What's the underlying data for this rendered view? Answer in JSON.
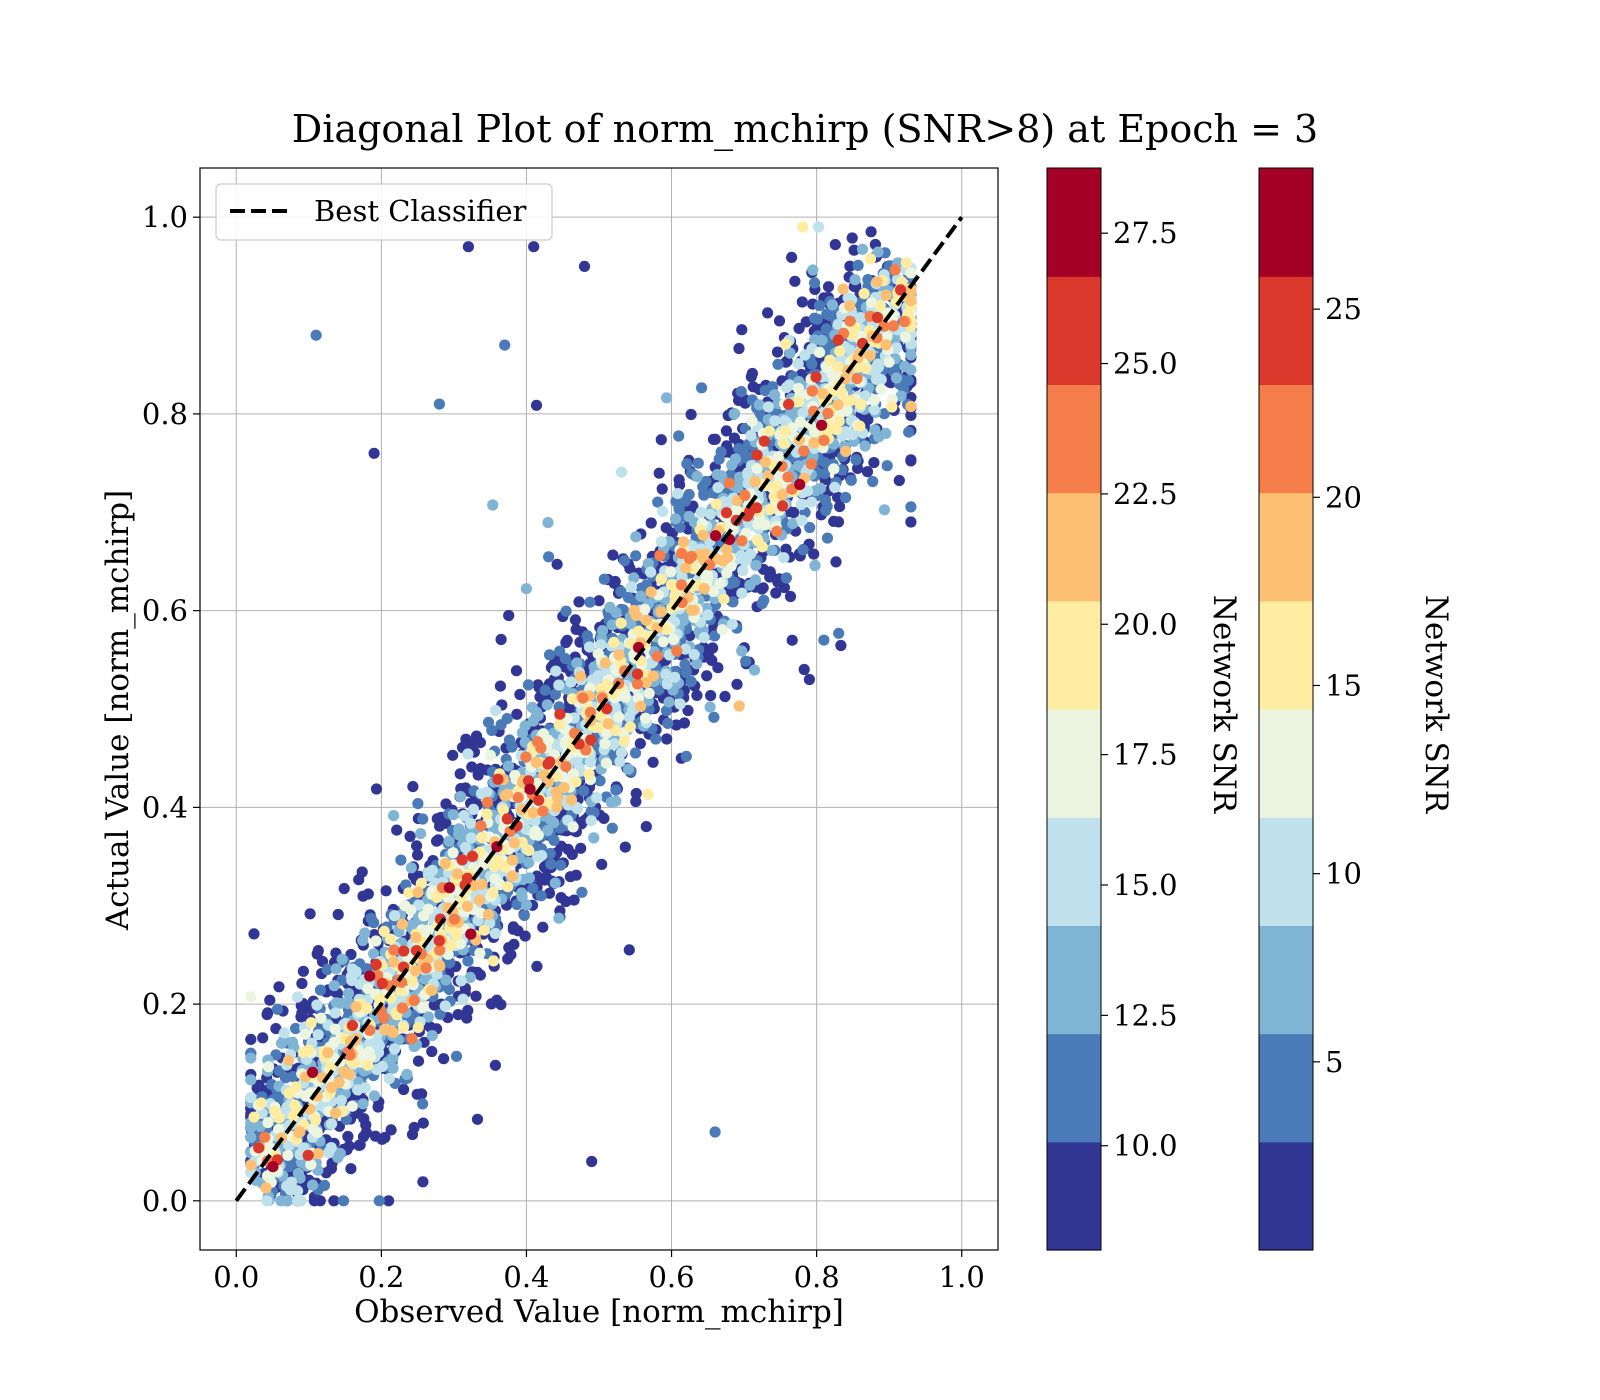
{
  "chart_data": {
    "type": "scatter",
    "title": "Diagonal Plot of norm_mchirp (SNR>8) at Epoch = 3",
    "xlabel": "Observed Value [norm_mchirp]",
    "ylabel": "Actual Value [norm_mchirp]",
    "xlim": [
      -0.05,
      1.05
    ],
    "ylim": [
      -0.05,
      1.05
    ],
    "xticks": [
      "0.0",
      "0.2",
      "0.4",
      "0.6",
      "0.8",
      "1.0"
    ],
    "yticks": [
      "0.0",
      "0.2",
      "0.4",
      "0.6",
      "0.8",
      "1.0"
    ],
    "grid": true,
    "legend": {
      "placement": "upper-left",
      "entries": [
        "Best Classifier"
      ]
    },
    "reference_line": {
      "name": "Best Classifier",
      "x": [
        0.0,
        1.0
      ],
      "y": [
        0.0,
        1.0
      ],
      "style": "dashed",
      "color": "#000000"
    },
    "scatter": {
      "color_by": "Network SNR",
      "approx_point_count": 5000,
      "visible_outliers": [
        {
          "x": 0.11,
          "y": 0.88,
          "snr": 12
        },
        {
          "x": 0.32,
          "y": 0.97,
          "snr": 9
        },
        {
          "x": 0.41,
          "y": 0.97,
          "snr": 9
        },
        {
          "x": 0.48,
          "y": 0.95,
          "snr": 9
        },
        {
          "x": 0.19,
          "y": 0.76,
          "snr": 9
        },
        {
          "x": 0.28,
          "y": 0.81,
          "snr": 11
        },
        {
          "x": 0.37,
          "y": 0.87,
          "snr": 12
        },
        {
          "x": 0.66,
          "y": 0.07,
          "snr": 12
        },
        {
          "x": 0.49,
          "y": 0.04,
          "snr": 9
        },
        {
          "x": 0.21,
          "y": 0.0,
          "snr": 9
        },
        {
          "x": 0.81,
          "y": 0.57,
          "snr": 11
        },
        {
          "x": 0.79,
          "y": 0.53,
          "snr": 9
        }
      ]
    },
    "colorbars": [
      {
        "label": "Network SNR",
        "range": [
          8.0,
          28.75
        ],
        "ticks": [
          "10.0",
          "12.5",
          "15.0",
          "17.5",
          "20.0",
          "22.5",
          "25.0",
          "27.5"
        ],
        "tick_values": [
          10.0,
          12.5,
          15.0,
          17.5,
          20.0,
          22.5,
          25.0,
          27.5
        ]
      },
      {
        "label": "Network SNR",
        "range": [
          0.0,
          28.75
        ],
        "ticks": [
          "5",
          "10",
          "15",
          "20",
          "25"
        ],
        "tick_values": [
          5,
          10,
          15,
          20,
          25
        ]
      }
    ],
    "colormap": [
      "#313695",
      "#4575b4",
      "#74add1",
      "#abd9e9",
      "#e0f3f8",
      "#fee090",
      "#fdae61",
      "#f46d43",
      "#d73027",
      "#a50026"
    ],
    "colormap_rendered": [
      "#313695",
      "#4a7ab7",
      "#7fb4d5",
      "#bfe1ec",
      "#ecf5df",
      "#feeca1",
      "#fdbf72",
      "#f57d4a",
      "#da382a",
      "#a50026"
    ]
  }
}
